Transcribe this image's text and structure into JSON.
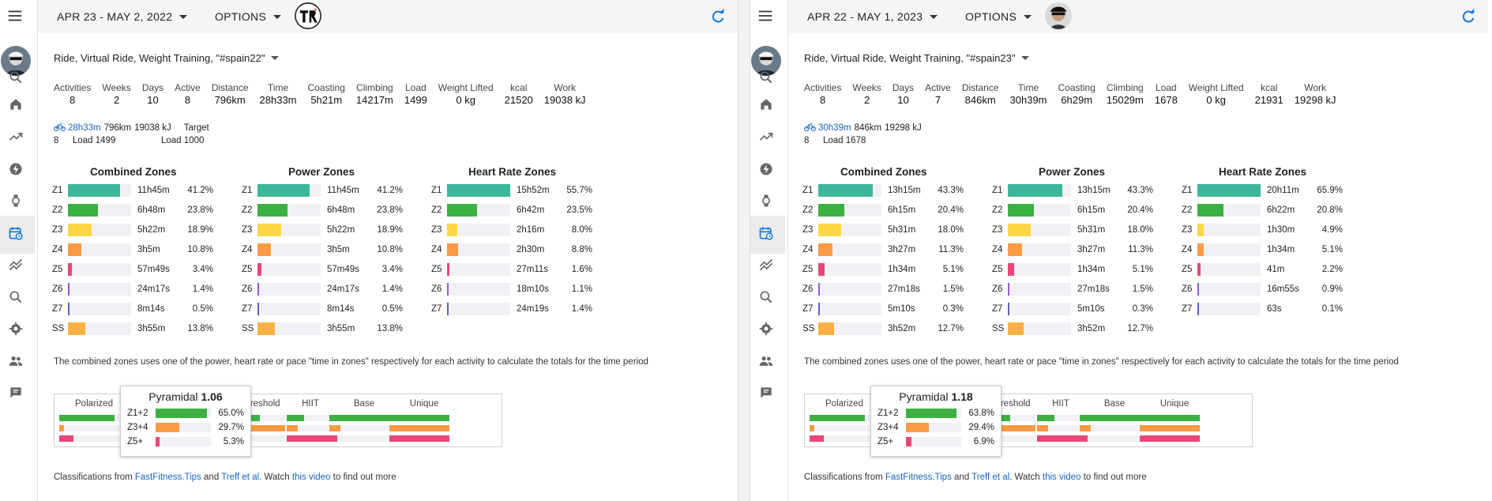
{
  "colors": {
    "z1": "#3bb89b",
    "z2": "#3cb043",
    "z3": "#fdd744",
    "z4": "#fb9a45",
    "z5": "#e94577",
    "z6": "#9c54d8",
    "z7": "#5f5fc4",
    "ss": "#fbb043",
    "pol_green": "#3cb043",
    "pol_orange": "#fb9a45",
    "pol_pink": "#e94577",
    "link": "#1565c0",
    "refresh": "#1976d2"
  },
  "panes": [
    {
      "date_range": "APR 23 - MAY 2, 2022",
      "options_label": "OPTIONS",
      "activity_types": "Ride, Virtual Ride, Weight Training, \"#spain22\"",
      "stats": [
        {
          "label": "Activities",
          "value": "8"
        },
        {
          "label": "Weeks",
          "value": "2"
        },
        {
          "label": "Days",
          "value": "10"
        },
        {
          "label": "Active",
          "value": "8"
        },
        {
          "label": "Distance",
          "value": "796km"
        },
        {
          "label": "Time",
          "value": "28h33m"
        },
        {
          "label": "Coasting",
          "value": "5h21m"
        },
        {
          "label": "Climbing",
          "value": "14217m"
        },
        {
          "label": "Load",
          "value": "1499"
        },
        {
          "label": "Weight Lifted",
          "value": "0 kg"
        },
        {
          "label": "kcal",
          "value": "21520"
        },
        {
          "label": "Work",
          "value": "19038 kJ"
        }
      ],
      "sport": {
        "time": "28h33m",
        "distance": "796km",
        "work": "19038 kJ",
        "target_label": "Target",
        "count": "8",
        "load": "Load 1499",
        "target_load": "Load 1000"
      },
      "zone_titles": [
        "Combined Zones",
        "Power Zones",
        "Heart Rate Zones"
      ],
      "combined": [
        {
          "z": "Z1",
          "t": "11h45m",
          "p": "41.2%",
          "v": 41.2
        },
        {
          "z": "Z2",
          "t": "6h48m",
          "p": "23.8%",
          "v": 23.8
        },
        {
          "z": "Z3",
          "t": "5h22m",
          "p": "18.9%",
          "v": 18.9
        },
        {
          "z": "Z4",
          "t": "3h5m",
          "p": "10.8%",
          "v": 10.8
        },
        {
          "z": "Z5",
          "t": "57m49s",
          "p": "3.4%",
          "v": 3.4
        },
        {
          "z": "Z6",
          "t": "24m17s",
          "p": "1.4%",
          "v": 1.4
        },
        {
          "z": "Z7",
          "t": "8m14s",
          "p": "0.5%",
          "v": 0.5
        },
        {
          "z": "SS",
          "t": "3h55m",
          "p": "13.8%",
          "v": 13.8
        }
      ],
      "power": [
        {
          "z": "Z1",
          "t": "11h45m",
          "p": "41.2%",
          "v": 41.2
        },
        {
          "z": "Z2",
          "t": "6h48m",
          "p": "23.8%",
          "v": 23.8
        },
        {
          "z": "Z3",
          "t": "5h22m",
          "p": "18.9%",
          "v": 18.9
        },
        {
          "z": "Z4",
          "t": "3h5m",
          "p": "10.8%",
          "v": 10.8
        },
        {
          "z": "Z5",
          "t": "57m49s",
          "p": "3.4%",
          "v": 3.4
        },
        {
          "z": "Z6",
          "t": "24m17s",
          "p": "1.4%",
          "v": 1.4
        },
        {
          "z": "Z7",
          "t": "8m14s",
          "p": "0.5%",
          "v": 0.5
        },
        {
          "z": "SS",
          "t": "3h55m",
          "p": "13.8%",
          "v": 13.8
        }
      ],
      "hr": [
        {
          "z": "Z1",
          "t": "15h52m",
          "p": "55.7%",
          "v": 55.7
        },
        {
          "z": "Z2",
          "t": "6h42m",
          "p": "23.5%",
          "v": 23.5
        },
        {
          "z": "Z3",
          "t": "2h16m",
          "p": "8.0%",
          "v": 8.0
        },
        {
          "z": "Z4",
          "t": "2h30m",
          "p": "8.8%",
          "v": 8.8
        },
        {
          "z": "Z5",
          "t": "27m11s",
          "p": "1.6%",
          "v": 1.6
        },
        {
          "z": "Z6",
          "t": "18m10s",
          "p": "1.1%",
          "v": 1.1
        },
        {
          "z": "Z7",
          "t": "24m19s",
          "p": "1.4%",
          "v": 1.4
        }
      ],
      "note": "The combined zones uses one of the power, heart rate or pace \"time in zones\" respectively for each activity to calculate the totals for the time period",
      "classes": [
        "Polarized",
        "Threshold",
        "HIIT",
        "Base",
        "Unique"
      ],
      "pyramid": {
        "title": "Pyramidal",
        "value": "1.06",
        "rows": [
          {
            "z": "Z1+2",
            "p": "65.0%",
            "v": 65.0
          },
          {
            "z": "Z3+4",
            "p": "29.7%",
            "v": 29.7
          },
          {
            "z": "Z5+",
            "p": "5.3%",
            "v": 5.3
          }
        ]
      },
      "footer": {
        "pre": "Classifications from ",
        "link1": "FastFitness.Tips",
        "and": " and ",
        "link2": "Treff et al",
        "mid": ". Watch ",
        "link3": "this video",
        "post": " to find out more"
      }
    },
    {
      "date_range": "APR 22 - MAY 1, 2023",
      "options_label": "OPTIONS",
      "activity_types": "Ride, Virtual Ride, Weight Training, \"#spain23\"",
      "stats": [
        {
          "label": "Activities",
          "value": "8"
        },
        {
          "label": "Weeks",
          "value": "2"
        },
        {
          "label": "Days",
          "value": "10"
        },
        {
          "label": "Active",
          "value": "7"
        },
        {
          "label": "Distance",
          "value": "846km"
        },
        {
          "label": "Time",
          "value": "30h39m"
        },
        {
          "label": "Coasting",
          "value": "6h29m"
        },
        {
          "label": "Climbing",
          "value": "15029m"
        },
        {
          "label": "Load",
          "value": "1678"
        },
        {
          "label": "Weight Lifted",
          "value": "0 kg"
        },
        {
          "label": "kcal",
          "value": "21931"
        },
        {
          "label": "Work",
          "value": "19298 kJ"
        }
      ],
      "sport": {
        "time": "30h39m",
        "distance": "846km",
        "work": "19298 kJ",
        "target_label": "",
        "count": "8",
        "load": "Load 1678",
        "target_load": ""
      },
      "zone_titles": [
        "Combined Zones",
        "Power Zones",
        "Heart Rate Zones"
      ],
      "combined": [
        {
          "z": "Z1",
          "t": "13h15m",
          "p": "43.3%",
          "v": 43.3
        },
        {
          "z": "Z2",
          "t": "6h15m",
          "p": "20.4%",
          "v": 20.4
        },
        {
          "z": "Z3",
          "t": "5h31m",
          "p": "18.0%",
          "v": 18.0
        },
        {
          "z": "Z4",
          "t": "3h27m",
          "p": "11.3%",
          "v": 11.3
        },
        {
          "z": "Z5",
          "t": "1h34m",
          "p": "5.1%",
          "v": 5.1
        },
        {
          "z": "Z6",
          "t": "27m18s",
          "p": "1.5%",
          "v": 1.5
        },
        {
          "z": "Z7",
          "t": "5m10s",
          "p": "0.3%",
          "v": 0.3
        },
        {
          "z": "SS",
          "t": "3h52m",
          "p": "12.7%",
          "v": 12.7
        }
      ],
      "power": [
        {
          "z": "Z1",
          "t": "13h15m",
          "p": "43.3%",
          "v": 43.3
        },
        {
          "z": "Z2",
          "t": "6h15m",
          "p": "20.4%",
          "v": 20.4
        },
        {
          "z": "Z3",
          "t": "5h31m",
          "p": "18.0%",
          "v": 18.0
        },
        {
          "z": "Z4",
          "t": "3h27m",
          "p": "11.3%",
          "v": 11.3
        },
        {
          "z": "Z5",
          "t": "1h34m",
          "p": "5.1%",
          "v": 5.1
        },
        {
          "z": "Z6",
          "t": "27m18s",
          "p": "1.5%",
          "v": 1.5
        },
        {
          "z": "Z7",
          "t": "5m10s",
          "p": "0.3%",
          "v": 0.3
        },
        {
          "z": "SS",
          "t": "3h52m",
          "p": "12.7%",
          "v": 12.7
        }
      ],
      "hr": [
        {
          "z": "Z1",
          "t": "20h11m",
          "p": "65.9%",
          "v": 65.9
        },
        {
          "z": "Z2",
          "t": "6h22m",
          "p": "20.8%",
          "v": 20.8
        },
        {
          "z": "Z3",
          "t": "1h30m",
          "p": "4.9%",
          "v": 4.9
        },
        {
          "z": "Z4",
          "t": "1h34m",
          "p": "5.1%",
          "v": 5.1
        },
        {
          "z": "Z5",
          "t": "41m",
          "p": "2.2%",
          "v": 2.2
        },
        {
          "z": "Z6",
          "t": "16m55s",
          "p": "0.9%",
          "v": 0.9
        },
        {
          "z": "Z7",
          "t": "63s",
          "p": "0.1%",
          "v": 0.1
        }
      ],
      "note": "The combined zones uses one of the power, heart rate or pace \"time in zones\" respectively for each activity to calculate the totals for the time period",
      "classes": [
        "Polarized",
        "Threshold",
        "HIIT",
        "Base",
        "Unique"
      ],
      "pyramid": {
        "title": "Pyramidal",
        "value": "1.18",
        "rows": [
          {
            "z": "Z1+2",
            "p": "63.8%",
            "v": 63.8
          },
          {
            "z": "Z3+4",
            "p": "29.4%",
            "v": 29.4
          },
          {
            "z": "Z5+",
            "p": "6.9%",
            "v": 6.9
          }
        ]
      },
      "footer": {
        "pre": "Classifications from ",
        "link1": "FastFitness.Tips",
        "and": " and ",
        "link2": "Treff et al",
        "mid": ". Watch ",
        "link3": "this video",
        "post": " to find out more"
      }
    }
  ],
  "sidebar_icons": [
    "search-icon",
    "home-icon",
    "trend-icon",
    "bolt-icon",
    "watch-icon",
    "calendar-chart-icon",
    "multi-trend-icon",
    "search-icon",
    "gear-icon",
    "people-icon",
    "chat-icon"
  ]
}
